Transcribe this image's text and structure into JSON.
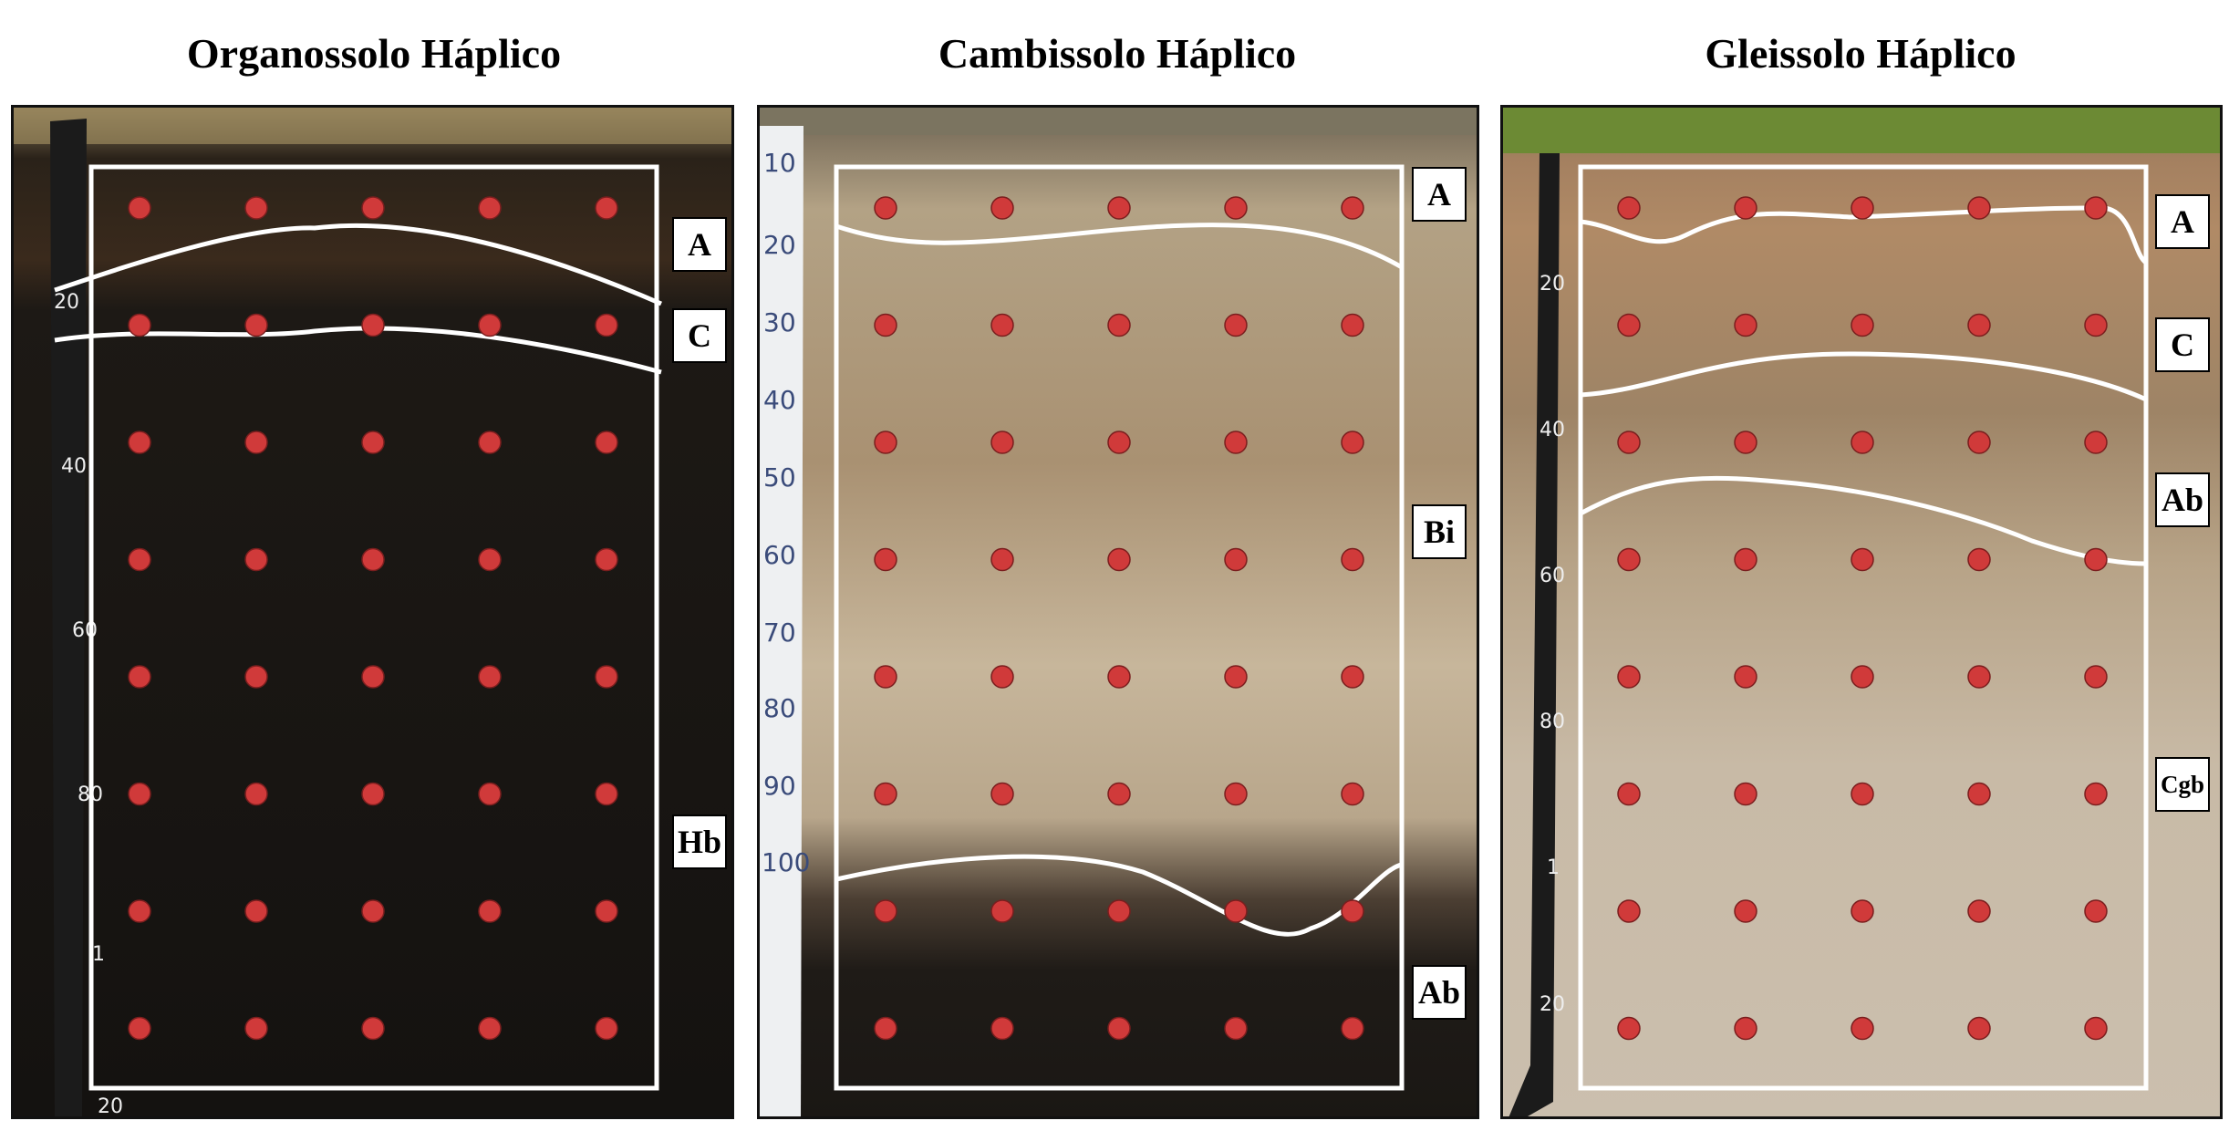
{
  "panels": [
    {
      "title": "Organossolo Háplico",
      "horizons": [
        "A",
        "C",
        "Hb"
      ],
      "tape_marks": [
        "20",
        "40",
        "60",
        "80",
        "1",
        "20"
      ]
    },
    {
      "title": "Cambissolo Háplico",
      "horizons": [
        "A",
        "Bi",
        "Ab"
      ],
      "tape_marks": [
        "10",
        "20",
        "30",
        "40",
        "50",
        "60",
        "70",
        "80",
        "90",
        "100"
      ]
    },
    {
      "title": "Gleissolo Háplico",
      "horizons": [
        "A",
        "C",
        "Ab",
        "Cgb"
      ],
      "tape_marks": [
        "20",
        "40",
        "60",
        "80",
        "1",
        "20"
      ]
    }
  ],
  "colors": {
    "point": "#d03a3a",
    "boundary": "#ffffff",
    "organossolo_soil": "#1c1815",
    "cambissolo_soil": "#b9a48a",
    "gleissolo_soil": "#c2b097"
  }
}
